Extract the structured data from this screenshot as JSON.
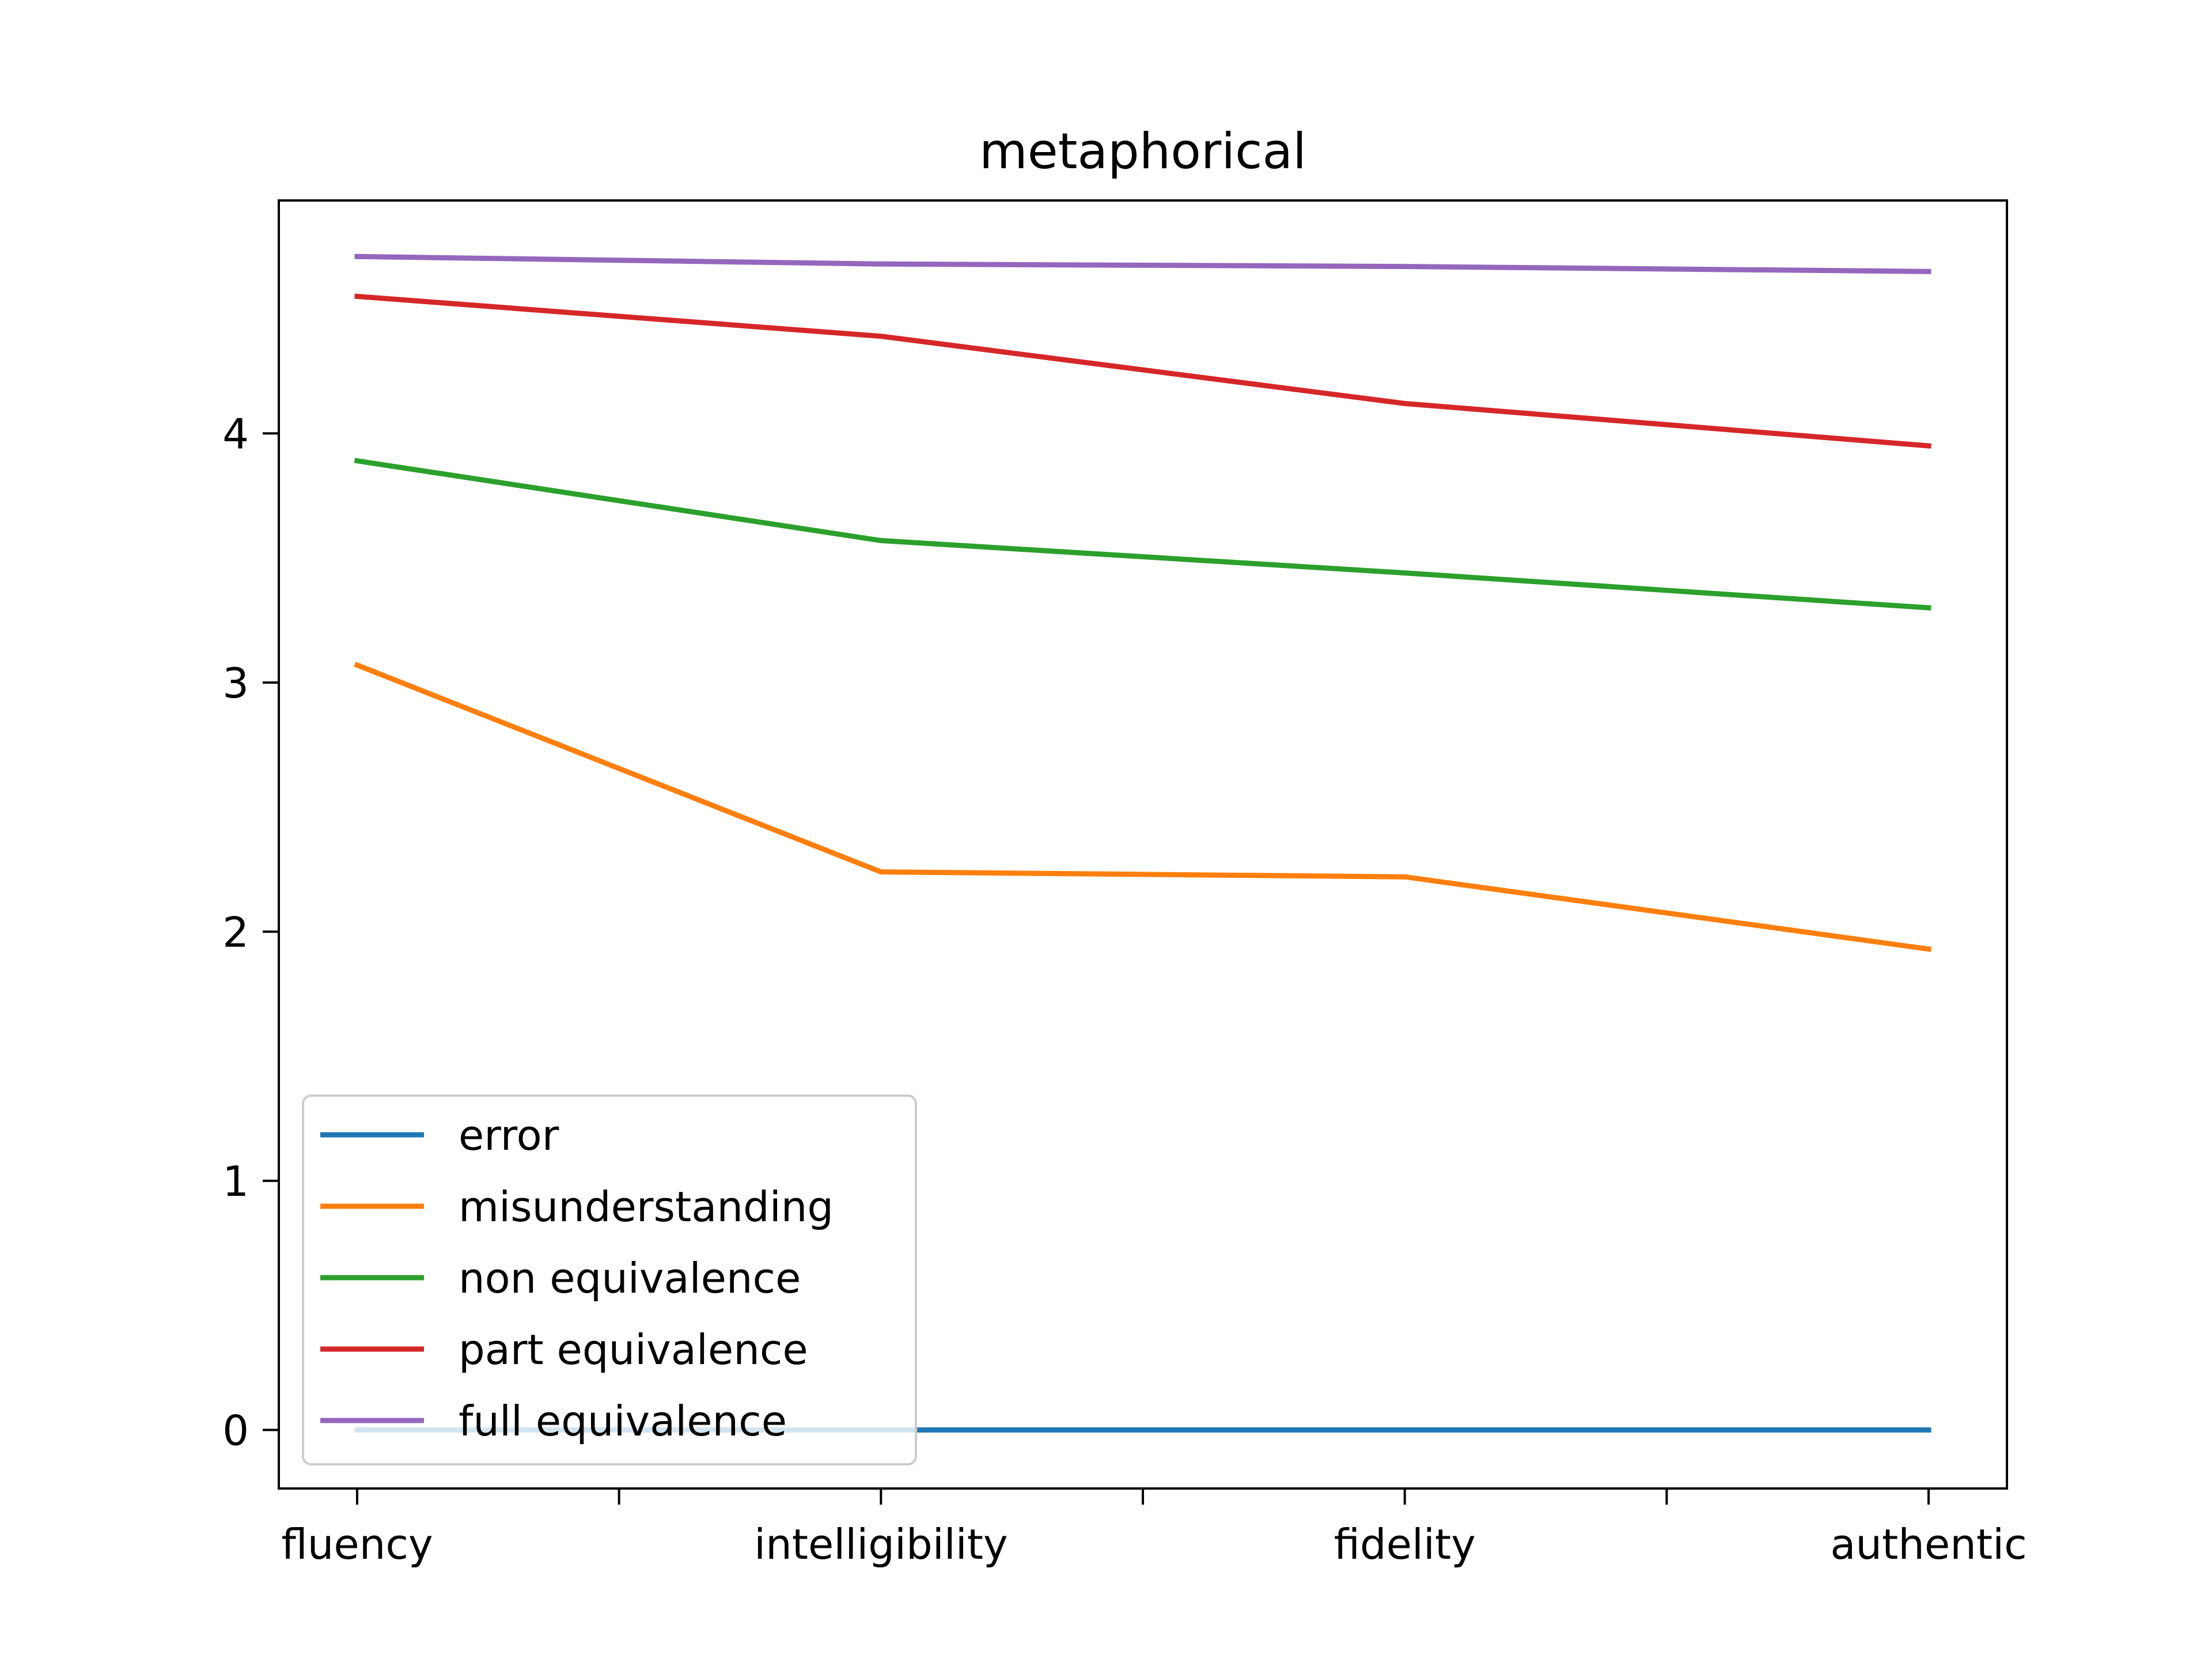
{
  "chart_data": {
    "type": "line",
    "title": "metaphorical",
    "xlabel": "",
    "ylabel": "",
    "categories": [
      "fluency",
      "intelligibility",
      "fidelity",
      "authentic"
    ],
    "y_ticks": [
      0,
      1,
      2,
      3,
      4
    ],
    "ylim": [
      -0.235,
      4.935
    ],
    "grid": false,
    "legend_position": "lower-left",
    "series": [
      {
        "name": "error",
        "color": "#1f77b4",
        "values": [
          0.0,
          0.0,
          0.0,
          0.0
        ]
      },
      {
        "name": "misunderstanding",
        "color": "#ff7f0e",
        "values": [
          3.07,
          2.24,
          2.22,
          1.93
        ]
      },
      {
        "name": "non equivalence",
        "color": "#2ca02c",
        "values": [
          3.89,
          3.57,
          3.44,
          3.3
        ]
      },
      {
        "name": "part equivalence",
        "color": "#d62728",
        "values": [
          4.55,
          4.39,
          4.12,
          3.95
        ]
      },
      {
        "name": "full equivalence",
        "color": "#9467bd",
        "values": [
          4.71,
          4.68,
          4.67,
          4.65
        ]
      }
    ]
  }
}
